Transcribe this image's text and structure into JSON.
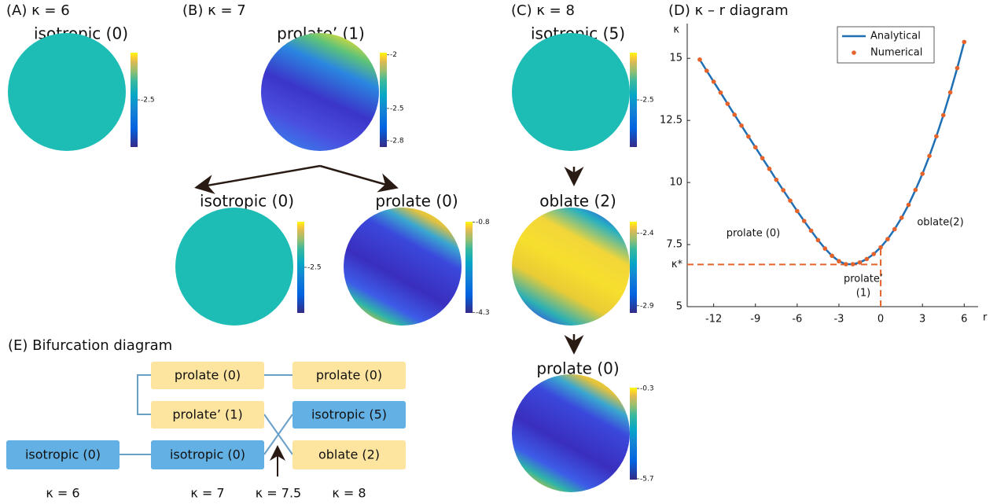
{
  "panel_a": {
    "label": "(A) κ = 6",
    "spheres": [
      {
        "title": "isotropic (0)",
        "shape": "isotropic",
        "clim": [
          -3,
          -2
        ],
        "cticks": [
          -2.5
        ]
      }
    ]
  },
  "panel_b": {
    "label": "(B) κ = 7",
    "spheres": [
      {
        "title": "prolate’ (1)",
        "shape": "prolate-prime",
        "clim": [
          -2.86,
          -1.98
        ],
        "cticks": [
          -2,
          -2.5,
          -2.8
        ]
      },
      {
        "title": "isotropic (0)",
        "shape": "isotropic",
        "clim": [
          -3,
          -2
        ],
        "cticks": [
          -2.5
        ]
      },
      {
        "title": "prolate (0)",
        "shape": "prolate",
        "clim": [
          -4.32,
          -0.78
        ],
        "cticks": [
          -0.8,
          -4.3
        ]
      }
    ]
  },
  "panel_c": {
    "label": "(C) κ = 8",
    "spheres": [
      {
        "title": "isotropic (5)",
        "shape": "isotropic",
        "clim": [
          -3,
          -2
        ],
        "cticks": [
          -2.5
        ]
      },
      {
        "title": "oblate (2)",
        "shape": "oblate",
        "clim": [
          -2.95,
          -2.32
        ],
        "cticks": [
          -2.4,
          -2.9
        ]
      },
      {
        "title": "prolate (0)",
        "shape": "prolate",
        "clim": [
          -5.75,
          -0.25
        ],
        "cticks": [
          -0.3,
          -5.7
        ]
      }
    ]
  },
  "chart_data": {
    "type": "line",
    "title": "(D) κ – r diagram",
    "x_label": "r",
    "y_label": "κ",
    "x": [
      -13,
      -12.5,
      -12,
      -11.5,
      -11,
      -10.5,
      -10,
      -9.5,
      -9,
      -8.5,
      -8,
      -7.5,
      -7,
      -6.5,
      -6,
      -5.5,
      -5,
      -4.5,
      -4,
      -3.5,
      -3,
      -2.5,
      -2,
      -1.5,
      -1,
      -0.5,
      0,
      0.5,
      1,
      1.5,
      2,
      2.5,
      3,
      3.5,
      4,
      4.5,
      5,
      5.5,
      6
    ],
    "series": [
      {
        "name": "Analytical",
        "color": "#1f6fb5",
        "style": "line",
        "values": [
          14.95,
          14.5,
          14.06,
          13.62,
          13.17,
          12.73,
          12.29,
          11.85,
          11.42,
          10.98,
          10.55,
          10.11,
          9.69,
          9.27,
          8.85,
          8.45,
          8.06,
          7.68,
          7.34,
          7.05,
          6.83,
          6.71,
          6.71,
          6.78,
          6.92,
          7.12,
          7.39,
          7.72,
          8.12,
          8.58,
          9.1,
          9.7,
          10.35,
          11.07,
          11.86,
          12.71,
          13.63,
          14.61,
          15.66
        ]
      },
      {
        "name": "Numerical",
        "color": "#e5632a",
        "style": "points",
        "values": [
          14.95,
          14.5,
          14.06,
          13.62,
          13.17,
          12.73,
          12.29,
          11.85,
          11.42,
          10.98,
          10.55,
          10.11,
          9.69,
          9.27,
          8.85,
          8.45,
          8.06,
          7.68,
          7.34,
          7.05,
          6.83,
          6.71,
          6.71,
          6.78,
          6.92,
          7.12,
          7.39,
          7.72,
          8.12,
          8.58,
          9.1,
          9.7,
          10.35,
          11.07,
          11.86,
          12.71,
          13.63,
          14.61,
          15.66
        ]
      }
    ],
    "xlim": [
      -13.9,
      7
    ],
    "ylim": [
      5,
      16.4
    ],
    "xticks": [
      -12,
      -9,
      -6,
      -3,
      0,
      3,
      6
    ],
    "yticks": [
      5,
      {
        "value": 6.7,
        "label": "κ*"
      },
      7.5,
      10,
      12.5,
      15
    ],
    "grid": false,
    "legend": "upper right",
    "reference_lines": {
      "x": 0,
      "y": 6.7,
      "color": "#e5632a"
    },
    "annotations": [
      "prolate (0)",
      "oblate(2)",
      "prolate’",
      "(1)"
    ]
  },
  "panel_e": {
    "title": "(E) Bifurcation diagram",
    "nodes": [
      "prolate (0)",
      "prolate (0)",
      "prolate’ (1)",
      "isotropic (5)",
      "isotropic (0)",
      "isotropic (0)",
      "oblate (2)"
    ],
    "kappa_labels": [
      "κ = 6",
      "κ = 7",
      "κ = 7.5",
      "κ = 8"
    ]
  }
}
